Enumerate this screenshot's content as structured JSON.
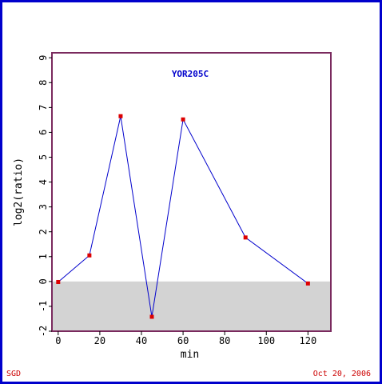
{
  "colors": {
    "frame": "#0000cc",
    "plot_border": "#7a2a5e",
    "negative_band": "#d3d3d3",
    "line": "#0000cc",
    "marker": "#dd0000",
    "title": "#0000cc",
    "footer": "#cc0000"
  },
  "chart_data": {
    "type": "line",
    "title": "YOR205C",
    "xlabel": "min",
    "ylabel": "log2(ratio)",
    "xlim": [
      -3,
      131
    ],
    "ylim": [
      -2,
      9.2
    ],
    "xticks": [
      0,
      20,
      40,
      60,
      80,
      100,
      120
    ],
    "yticks": [
      -2,
      -1,
      0,
      1,
      2,
      3,
      4,
      5,
      6,
      7,
      8,
      9
    ],
    "xtick_labels": [
      "0",
      "20",
      "40",
      "60",
      "80",
      "100",
      "120"
    ],
    "ytick_labels": [
      "-2",
      "-1",
      "0",
      "1",
      "2",
      "3",
      "4",
      "5",
      "6",
      "7",
      "8",
      "9"
    ],
    "grid": false,
    "negative_region_shaded": true,
    "series": [
      {
        "x": [
          0,
          15,
          30,
          45,
          60,
          90,
          120
        ],
        "y": [
          -0.02,
          1.05,
          6.65,
          -1.42,
          6.52,
          1.77,
          -0.08
        ]
      }
    ]
  },
  "footer": {
    "left": "SGD",
    "right": "Oct 20, 2006"
  }
}
